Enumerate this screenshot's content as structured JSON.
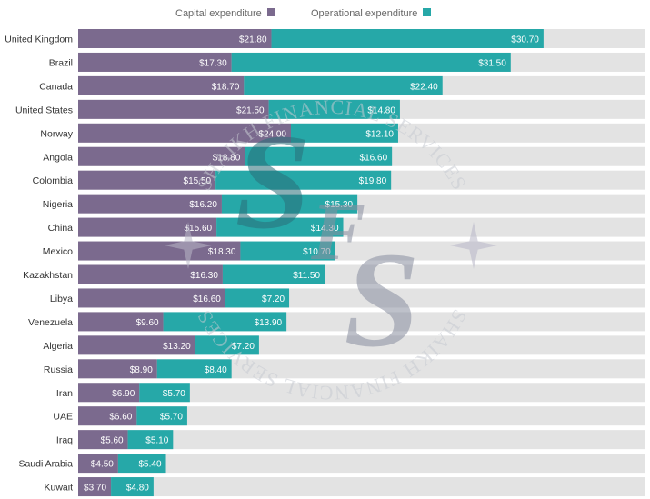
{
  "chart_data": {
    "type": "bar",
    "orientation": "horizontal",
    "stacked": true,
    "categories": [
      "United Kingdom",
      "Brazil",
      "Canada",
      "United States",
      "Norway",
      "Angola",
      "Colombia",
      "Nigeria",
      "China",
      "Mexico",
      "Kazakhstan",
      "Libya",
      "Venezuela",
      "Algeria",
      "Russia",
      "Iran",
      "UAE",
      "Iraq",
      "Saudi Arabia",
      "Kuwait"
    ],
    "series": [
      {
        "name": "Capital expenditure",
        "color": "#7b6a8e",
        "values": [
          21.8,
          17.3,
          18.7,
          21.5,
          24.0,
          18.8,
          15.5,
          16.2,
          15.6,
          18.3,
          16.3,
          16.6,
          9.6,
          13.2,
          8.9,
          6.9,
          6.6,
          5.6,
          4.5,
          3.7
        ],
        "labels": [
          "$21.80",
          "$17.30",
          "$18.70",
          "$21.50",
          "$24.00",
          "$18.80",
          "$15.50",
          "$16.20",
          "$15.60",
          "$18.30",
          "$16.30",
          "$16.60",
          "$9.60",
          "$13.20",
          "$8.90",
          "$6.90",
          "$6.60",
          "$5.60",
          "$4.50",
          "$3.70"
        ]
      },
      {
        "name": "Operational expenditure",
        "color": "#26a8a8",
        "values": [
          30.7,
          31.5,
          22.4,
          14.8,
          12.1,
          16.6,
          19.8,
          15.3,
          14.3,
          10.7,
          11.5,
          7.2,
          13.9,
          7.2,
          8.4,
          5.7,
          5.7,
          5.1,
          5.4,
          4.8
        ],
        "labels": [
          "$30.70",
          "$31.50",
          "$22.40",
          "$14.80",
          "$12.10",
          "$16.60",
          "$19.80",
          "$15.30",
          "$14.30",
          "$10.70",
          "$11.50",
          "$7.20",
          "$13.90",
          "$7.20",
          "$8.40",
          "$5.70",
          "$5.70",
          "$5.10",
          "$5.40",
          "$4.80"
        ]
      }
    ],
    "xlim": [
      0,
      64
    ],
    "grid": false,
    "legend_position": "top"
  },
  "colors": {
    "background_bar": "#e3e3e3",
    "capital": "#7b6a8e",
    "operational": "#26a8a8"
  },
  "watermark": {
    "text": "SHAIKH FINANCIAL SERVICES",
    "monogram": "SFS"
  }
}
